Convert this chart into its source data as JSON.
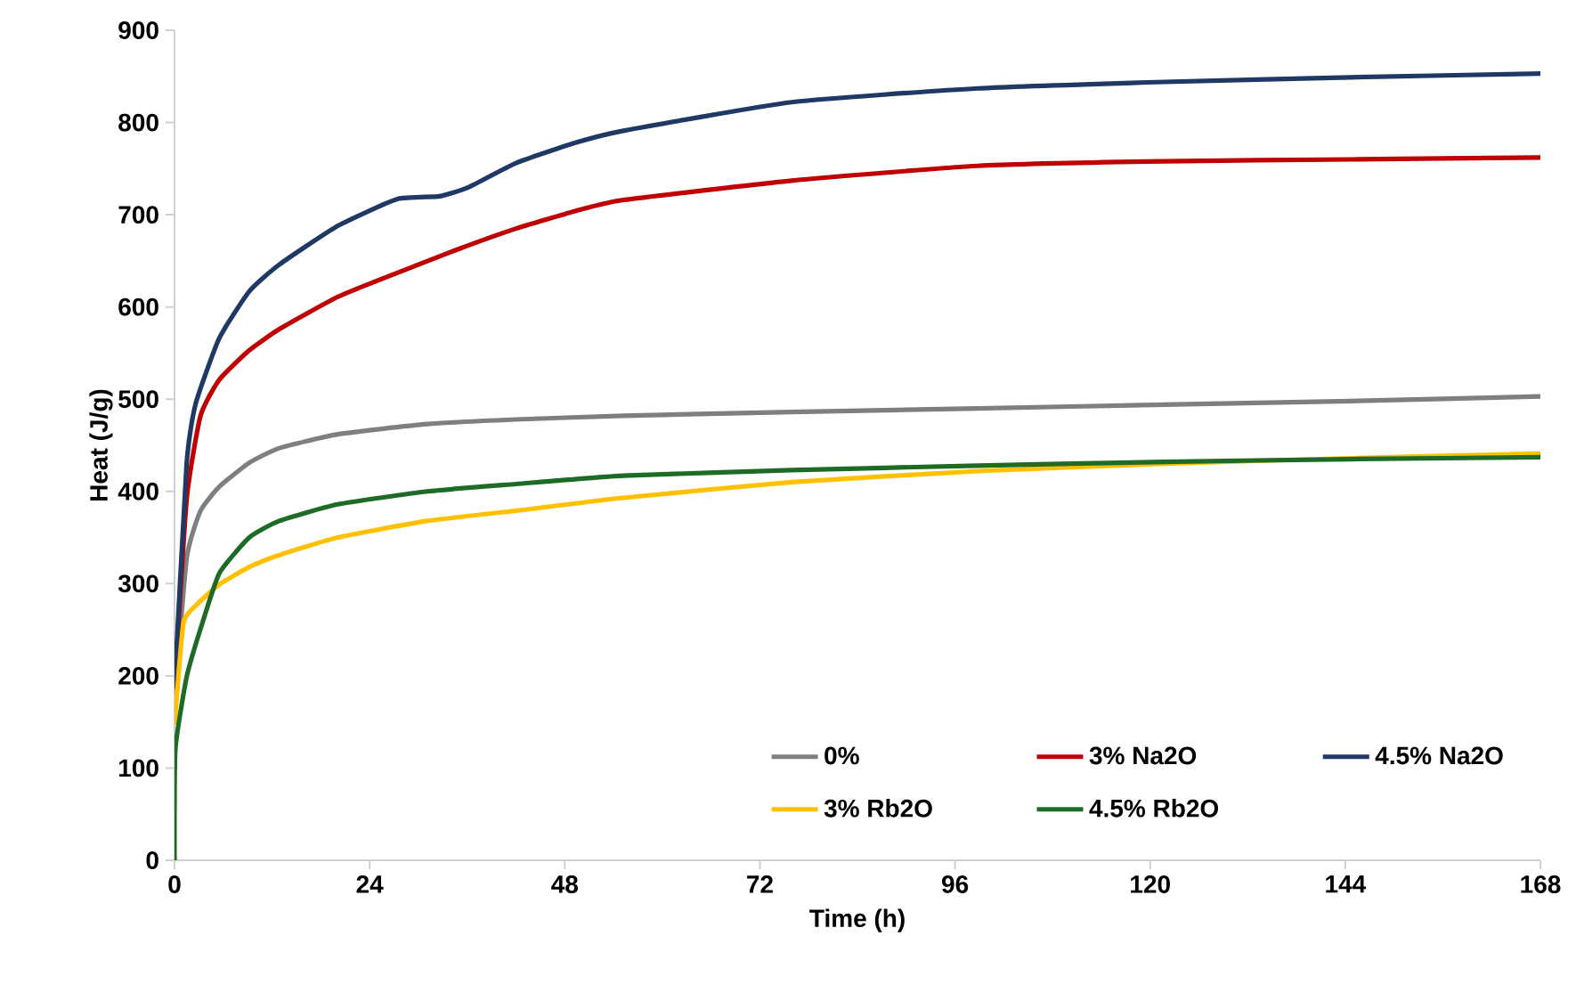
{
  "chart_data": {
    "type": "line",
    "xlabel": "Time (h)",
    "ylabel": "Heat (J/g)",
    "xlim": [
      0,
      168
    ],
    "ylim": [
      0,
      900
    ],
    "xticks": [
      0,
      24,
      48,
      72,
      96,
      120,
      144,
      168
    ],
    "yticks": [
      0,
      100,
      200,
      300,
      400,
      500,
      600,
      700,
      800,
      900
    ],
    "legend": "bottom right",
    "series": [
      {
        "name": "0%",
        "color": "#7f7f7f",
        "x": [
          0,
          1.5,
          3.2,
          5.5,
          9.2,
          12.9,
          20.1,
          31.1,
          42,
          55.2,
          75.9,
          98.8,
          121.7,
          144.6,
          168
        ],
        "values": [
          170,
          328,
          379,
          405,
          431,
          447,
          462,
          473,
          478,
          482,
          486,
          490,
          494,
          498,
          503
        ]
      },
      {
        "name": "3% Na2O",
        "color": "#c00000",
        "x": [
          0,
          1.5,
          3.2,
          5.5,
          9.2,
          12.9,
          20.1,
          27.4,
          34.7,
          42,
          49.3,
          55.2,
          75.9,
          98.8,
          121.7,
          144.6,
          168
        ],
        "values": [
          186,
          392,
          482,
          521,
          553,
          576,
          611,
          637,
          662,
          685,
          704,
          716,
          737,
          753,
          758,
          760,
          762
        ]
      },
      {
        "name": "4.5% Na2O",
        "color": "#1f3864",
        "x": [
          0,
          1.5,
          2.6,
          5.5,
          9.2,
          12.9,
          20.1,
          27.4,
          32.6,
          36.2,
          42,
          49.3,
          55.2,
          75.9,
          98.8,
          121.7,
          144.6,
          168
        ],
        "values": [
          186,
          431,
          495,
          566,
          617,
          646,
          688,
          717,
          720,
          730,
          756,
          778,
          791,
          822,
          837,
          844,
          849,
          853
        ]
      },
      {
        "name": "3% Rb2O",
        "color": "#ffc000",
        "x": [
          0,
          1.1,
          2.6,
          5.5,
          9.2,
          12.9,
          20.1,
          31.1,
          42,
          55.2,
          75.9,
          98.8,
          121.7,
          144.6,
          168
        ],
        "values": [
          147,
          257,
          276,
          299,
          318,
          331,
          350,
          368,
          379,
          393,
          410,
          422,
          430,
          436,
          441
        ]
      },
      {
        "name": "4.5% Rb2O",
        "color": "#1e6b26",
        "x": [
          0,
          0.1,
          1.5,
          3.2,
          5.5,
          9.2,
          12.9,
          20.1,
          31.1,
          42,
          55.2,
          75.9,
          98.8,
          121.7,
          144.6,
          168
        ],
        "values": [
          0,
          120,
          199,
          251,
          311,
          350,
          368,
          386,
          400,
          408,
          417,
          423,
          428,
          432,
          435,
          437
        ]
      }
    ]
  }
}
